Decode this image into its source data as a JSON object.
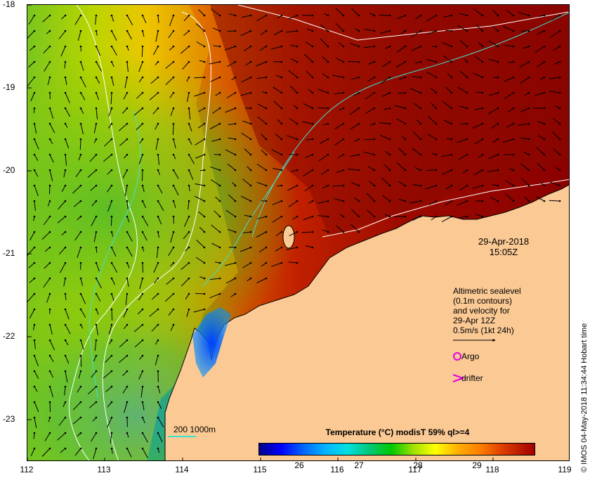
{
  "y_ticks": [
    "-18",
    "-19",
    "-20",
    "-21",
    "-22",
    "-23"
  ],
  "x_ticks": [
    "112",
    "113",
    "114",
    "115",
    "116",
    "117",
    "118",
    "119"
  ],
  "date_line1": "29-Apr-2018",
  "date_line2": "15:05Z",
  "legend": {
    "line1": "Altimetric sealevel",
    "line2": "(0.1m contours)",
    "line3": "and velocity for",
    "line4": "29-Apr 12Z",
    "line5": "0.5m/s (1kt 24h)",
    "argo": "Argo",
    "drifter": "drifter"
  },
  "colorbar": {
    "title": "Temperature (°C) modisT 59% ql>=4",
    "ticks": [
      "26",
      "27",
      "28",
      "29"
    ]
  },
  "depth_label": "200  1000m",
  "credit": "© IMOS 04-May-2018 11:34:44 Hobart time",
  "colors": {
    "land": "#fbc994",
    "warm": "#8b0a00",
    "cool": "#00aa40",
    "contour_isobath": "#40e0d0",
    "argo_marker": "#e000e0"
  }
}
